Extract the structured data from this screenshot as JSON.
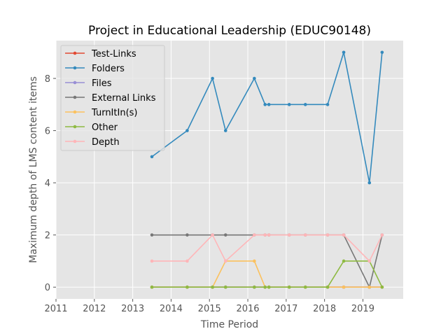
{
  "chart_data": {
    "type": "line",
    "title": "Project in Educational Leadership (EDUC90148)",
    "xlabel": "Time Period",
    "ylabel": "Maximum depth of LMS content items",
    "xlim": [
      2011.0,
      2020.05
    ],
    "ylim": [
      -0.45,
      9.45
    ],
    "xticks": [
      2011,
      2012,
      2013,
      2014,
      2015,
      2016,
      2017,
      2018,
      2019
    ],
    "yticks": [
      0,
      2,
      4,
      6,
      8
    ],
    "grid": true,
    "legend_position": "top-left",
    "x": [
      2013.5,
      2014.42,
      2015.08,
      2015.42,
      2016.17,
      2016.45,
      2016.55,
      2017.08,
      2017.5,
      2018.08,
      2018.5,
      2019.17,
      2019.5
    ],
    "series": [
      {
        "name": "Test-Links",
        "color": "#e24a33",
        "values": [
          0,
          0,
          0,
          0,
          0,
          0,
          0,
          0,
          0,
          0,
          0,
          0,
          0
        ]
      },
      {
        "name": "Folders",
        "color": "#348abd",
        "values": [
          5,
          6,
          8,
          6,
          8,
          7,
          7,
          7,
          7,
          7,
          9,
          4,
          9
        ]
      },
      {
        "name": "Files",
        "color": "#988ed5",
        "values": [
          0,
          0,
          0,
          0,
          0,
          0,
          0,
          0,
          0,
          0,
          0,
          0,
          0
        ]
      },
      {
        "name": "External Links",
        "color": "#777777",
        "values": [
          2,
          2,
          2,
          2,
          2,
          2,
          2,
          2,
          2,
          2,
          2,
          0,
          2
        ]
      },
      {
        "name": "TurnItIn(s)",
        "color": "#fbc15e",
        "values": [
          0,
          0,
          0,
          1,
          1,
          0,
          0,
          0,
          0,
          0,
          0,
          0,
          0
        ]
      },
      {
        "name": "Other",
        "color": "#8eba42",
        "values": [
          0,
          0,
          0,
          0,
          0,
          0,
          0,
          0,
          0,
          0,
          1,
          1,
          0
        ]
      },
      {
        "name": "Depth",
        "color": "#ffb5b8",
        "values": [
          1,
          1,
          2,
          1,
          2,
          2,
          2,
          2,
          2,
          2,
          2,
          1,
          2
        ]
      }
    ]
  }
}
